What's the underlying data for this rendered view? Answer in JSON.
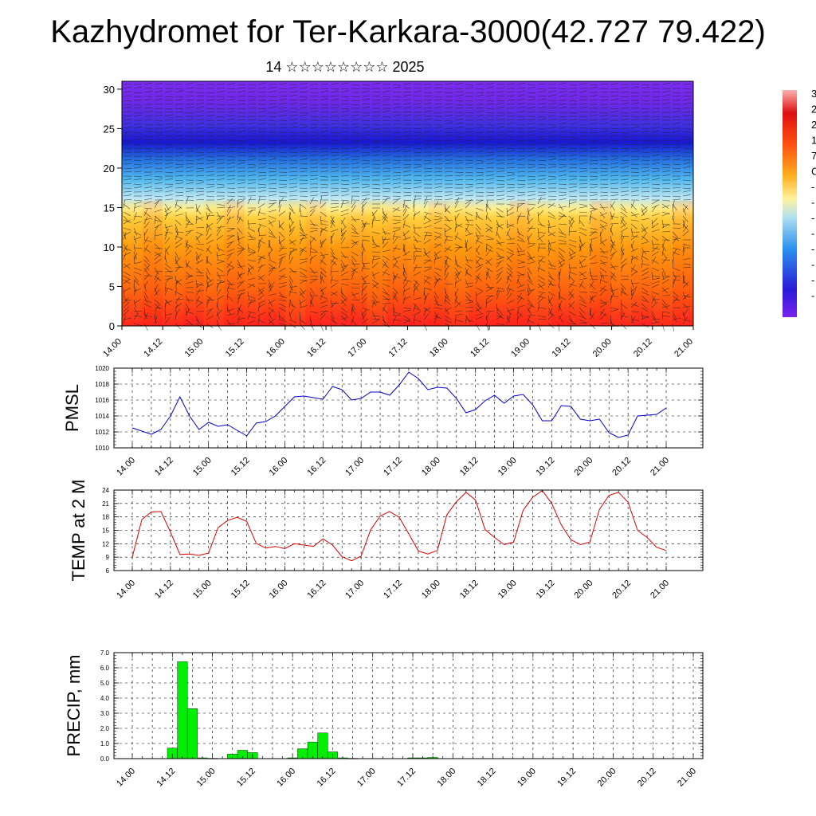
{
  "title": "Kazhydromet for Ter-Karkara-3000(42.727 79.422)",
  "subtitle": "14 ☆☆☆☆☆☆☆☆ 2025",
  "time_ticks": [
    "14.00",
    "14.12",
    "15.00",
    "15.12",
    "16.00",
    "16.12",
    "17.00",
    "17.12",
    "18.00",
    "18.12",
    "19.00",
    "19.12",
    "20.00",
    "20.12",
    "21.00"
  ],
  "colors": {
    "pmsl": "#0000cc",
    "temp": "#dd0000",
    "precip": "#00ee00"
  },
  "chart_data": [
    {
      "type": "heatmap",
      "name": "cross-section",
      "x_ticks": [
        "14.00",
        "14.12",
        "15.00",
        "15.12",
        "16.00",
        "16.12",
        "17.00",
        "17.12",
        "18.00",
        "18.12",
        "19.00",
        "19.12",
        "20.00",
        "20.12",
        "21.00"
      ],
      "y_ticks": [
        "0",
        "5",
        "10",
        "15",
        "20",
        "25",
        "30"
      ],
      "ylim": [
        0,
        31
      ],
      "colorbar_labels": [
        "3",
        "2",
        "2",
        "1",
        "7",
        "C",
        "-",
        "-",
        "-",
        "-",
        "-",
        "-",
        "-",
        "-"
      ]
    },
    {
      "type": "line",
      "ylabel": "PMSL",
      "ylim": [
        1010,
        1020
      ],
      "y_ticks": [
        "1010",
        "1012",
        "1014",
        "1016",
        "1018",
        "1020"
      ],
      "x": [
        0,
        3,
        6,
        9,
        12,
        15,
        18,
        21,
        24,
        27,
        30,
        33,
        36,
        39,
        42,
        45,
        48,
        51,
        54,
        57,
        60,
        63,
        66,
        69,
        72,
        75,
        78,
        81,
        84,
        87,
        90,
        93,
        96,
        99,
        102,
        105,
        108,
        111,
        114,
        117,
        120,
        123,
        126,
        129,
        132,
        135,
        138,
        141,
        144,
        147,
        150,
        153,
        156,
        159,
        162,
        165,
        168
      ],
      "values": [
        1012.5,
        1012.1,
        1011.7,
        1012.3,
        1014,
        1016.4,
        1014,
        1012.3,
        1013.2,
        1012.7,
        1012.9,
        1012.2,
        1011.5,
        1013.1,
        1013.3,
        1014,
        1015.2,
        1016.4,
        1016.5,
        1016.3,
        1016.1,
        1017.7,
        1017.3,
        1016,
        1016.2,
        1017,
        1017,
        1016.6,
        1017.9,
        1019.5,
        1018.7,
        1017.3,
        1017.6,
        1017.5,
        1016.2,
        1014.4,
        1014.8,
        1015.9,
        1016.6,
        1015.6,
        1016.5,
        1016.7,
        1015.4,
        1013.4,
        1013.4,
        1015.3,
        1015.2,
        1013.6,
        1013.4,
        1013.6,
        1011.9,
        1011.3,
        1011.6,
        1014,
        1014.1,
        1014.2,
        1015
      ]
    },
    {
      "type": "line",
      "ylabel": "TEMP at 2 M",
      "ylim": [
        6,
        24
      ],
      "y_ticks": [
        "6",
        "9",
        "12",
        "15",
        "18",
        "21",
        "24"
      ],
      "x": [
        0,
        3,
        6,
        9,
        12,
        15,
        18,
        21,
        24,
        27,
        30,
        33,
        36,
        39,
        42,
        45,
        48,
        51,
        54,
        57,
        60,
        63,
        66,
        69,
        72,
        75,
        78,
        81,
        84,
        87,
        90,
        93,
        96,
        99,
        102,
        105,
        108,
        111,
        114,
        117,
        120,
        123,
        126,
        129,
        132,
        135,
        138,
        141,
        144,
        147,
        150,
        153,
        156,
        159,
        162,
        165,
        168
      ],
      "values": [
        9,
        17.4,
        19.1,
        19.2,
        14.6,
        9.6,
        9.7,
        9.4,
        9.9,
        15.6,
        17.2,
        17.9,
        17,
        12.1,
        11,
        11.4,
        10.9,
        12,
        11.7,
        11.4,
        13.1,
        11.7,
        9.1,
        8.2,
        9.2,
        15.1,
        18.2,
        19.2,
        17.9,
        14.2,
        10.4,
        9.7,
        10.5,
        18.5,
        21.4,
        23.5,
        21.8,
        15.2,
        13.4,
        11.8,
        12.4,
        19.5,
        22.4,
        23.9,
        21,
        16.2,
        12.9,
        11.8,
        12.4,
        19.7,
        22.8,
        23.5,
        21.3,
        15,
        13.4,
        11.2,
        10.5
      ]
    },
    {
      "type": "bar",
      "ylabel": "PRECIP, mm",
      "ylim": [
        0,
        7
      ],
      "y_ticks": [
        "0.0",
        "1.0",
        "2.0",
        "3.0",
        "4.0",
        "5.0",
        "6.0",
        "7.0"
      ],
      "x": [
        12,
        15,
        18,
        21,
        24,
        27,
        30,
        33,
        36,
        39,
        42,
        45,
        48,
        51,
        54,
        57,
        60,
        63,
        66,
        69,
        72,
        75,
        78,
        81,
        84,
        87,
        90,
        93,
        96
      ],
      "values": [
        0.7,
        6.4,
        3.3,
        0.05,
        0.02,
        0,
        0.3,
        0.55,
        0.4,
        0,
        0,
        0,
        0.05,
        0.65,
        1.1,
        1.7,
        0.45,
        0.05,
        0.02,
        0,
        0,
        0,
        0,
        0,
        0.05,
        0.05,
        0.08,
        0,
        0
      ]
    }
  ]
}
